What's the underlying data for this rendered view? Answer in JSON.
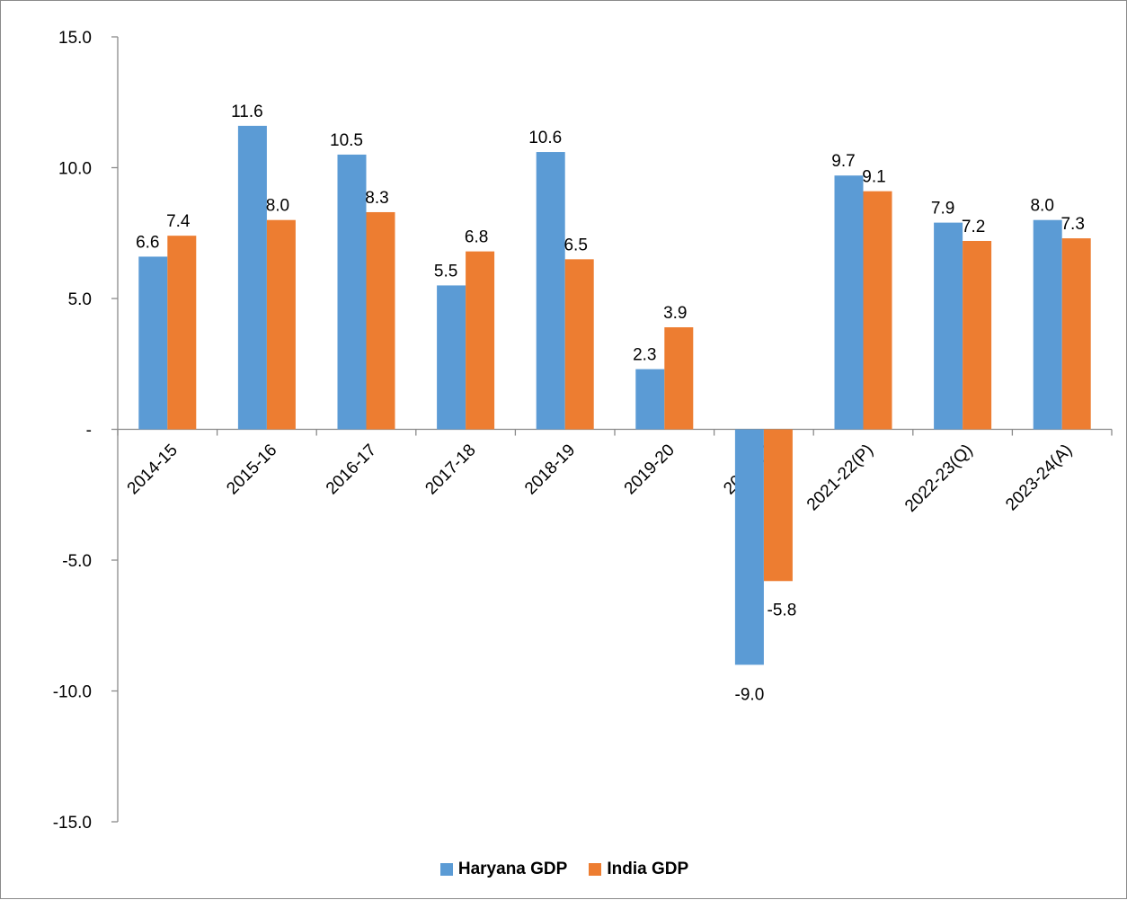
{
  "chart_data": {
    "type": "bar",
    "categories": [
      "2014-15",
      "2015-16",
      "2016-17",
      "2017-18",
      "2018-19",
      "2019-20",
      "2020-21",
      "2021-22(P)",
      "2022-23(Q)",
      "2023-24(A)"
    ],
    "series": [
      {
        "name": "Haryana GDP",
        "color": "#5B9BD5",
        "values": [
          6.6,
          11.6,
          10.5,
          5.5,
          10.6,
          2.3,
          -9.0,
          9.7,
          7.9,
          8.0
        ]
      },
      {
        "name": "India GDP",
        "color": "#ED7D31",
        "values": [
          7.4,
          8.0,
          8.3,
          6.8,
          6.5,
          3.9,
          -5.8,
          9.1,
          7.2,
          7.3
        ]
      }
    ],
    "ylim": [
      -15,
      15
    ],
    "yticks": [
      15,
      10,
      5,
      0,
      -5,
      -10,
      -15
    ],
    "ytick_labels": [
      "15.0",
      "10.0",
      "5.0",
      "-",
      "-5.0",
      "-10.0",
      "-15.0"
    ],
    "grid": false,
    "legend_position": "bottom",
    "title": "",
    "xlabel": "",
    "ylabel": ""
  }
}
